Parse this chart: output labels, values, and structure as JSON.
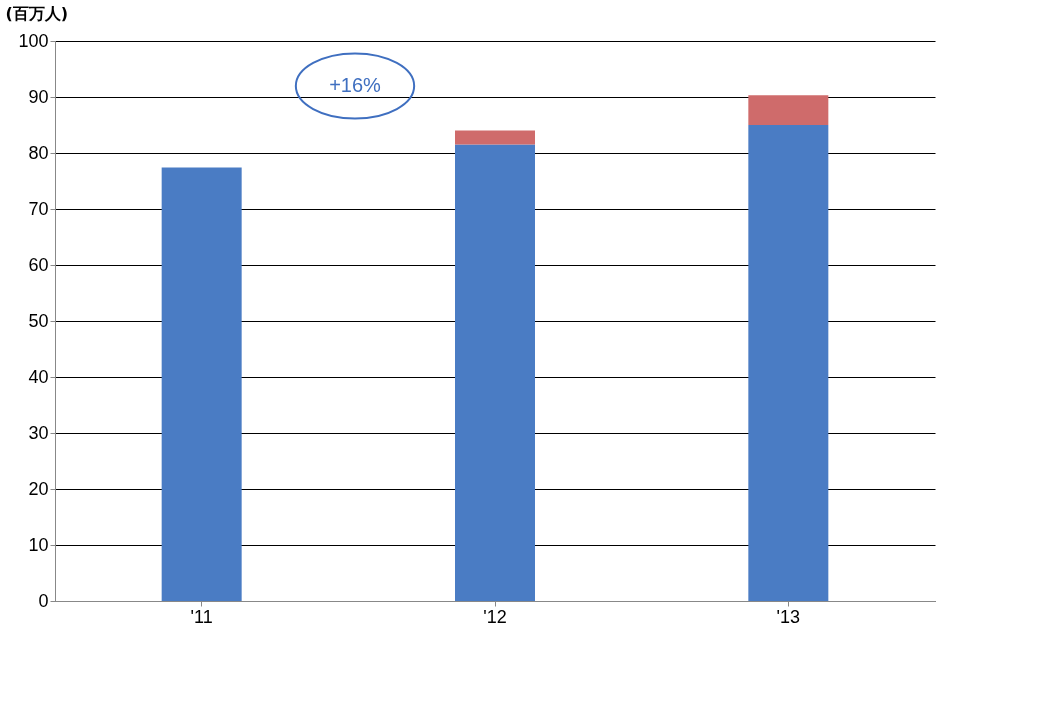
{
  "chart_data": {
    "type": "bar",
    "stacked": true,
    "ylabel": "(百万人)",
    "categories": [
      "'11",
      "'12",
      "'13"
    ],
    "series": [
      {
        "color": "#4a7cc4",
        "values": [
          77.4,
          81.5,
          85.0
        ]
      },
      {
        "color": "#cf6b6b",
        "values": [
          null,
          2.5,
          5.3
        ]
      }
    ],
    "ylim": [
      0,
      100
    ],
    "yticks": [
      0,
      10,
      20,
      30,
      40,
      50,
      60,
      70,
      80,
      90,
      100
    ],
    "grid": "y",
    "annotations": [
      "+16%"
    ]
  }
}
